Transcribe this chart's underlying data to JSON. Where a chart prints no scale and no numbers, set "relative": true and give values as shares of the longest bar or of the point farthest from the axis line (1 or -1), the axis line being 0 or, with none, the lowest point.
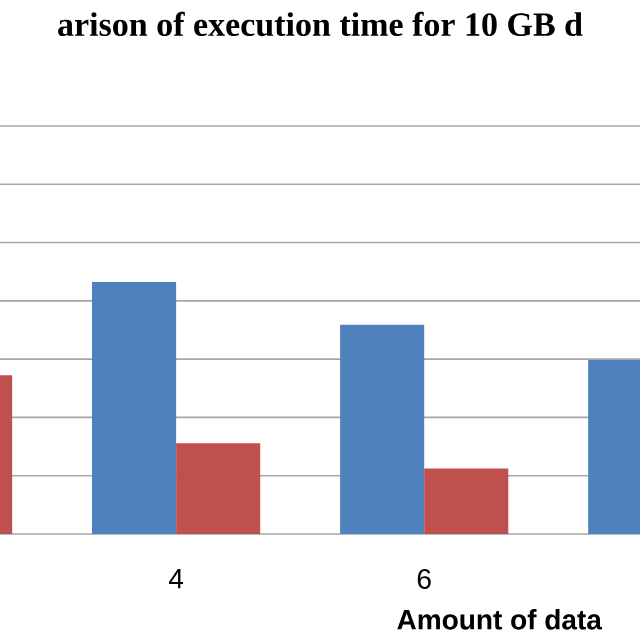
{
  "chart_data": {
    "type": "bar",
    "title": "arison of execution time for  10 GB d",
    "xlabel": "Amount of data",
    "categories": [
      null,
      "4",
      "6",
      null
    ],
    "relative": true,
    "grid": "y",
    "series": [
      {
        "color": "#4f81bd",
        "values": [
          null,
          1,
          0.83,
          0.69
        ]
      },
      {
        "color": "#c0504d",
        "values": [
          0.63,
          0.36,
          0.26,
          null
        ]
      }
    ]
  }
}
